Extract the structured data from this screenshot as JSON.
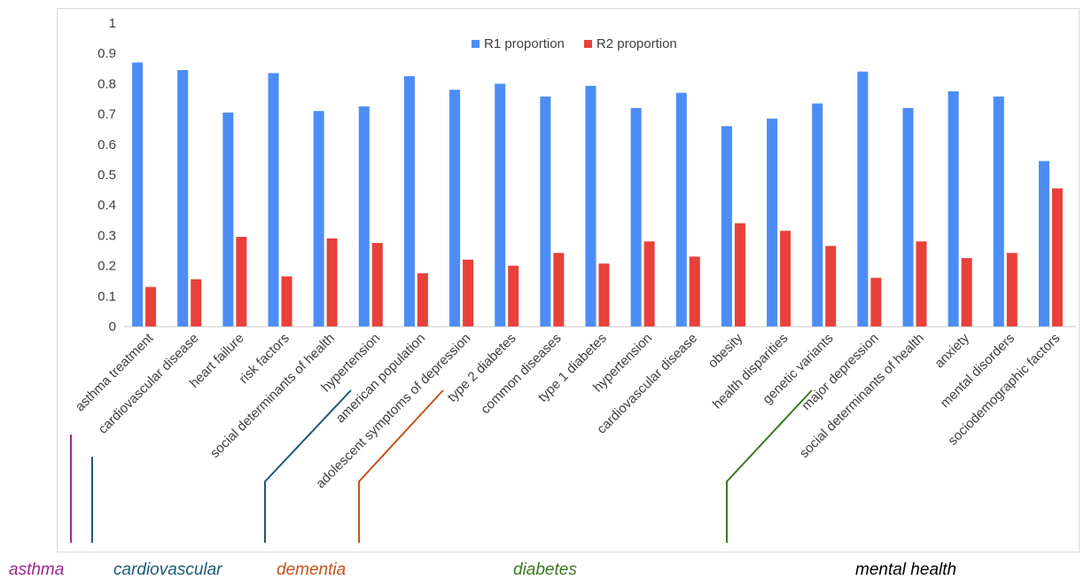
{
  "chart_data": {
    "type": "bar",
    "categories": [
      "asthma treatment",
      "cardiovascular disease",
      "heart failure",
      "risk factors",
      "social determinants of health",
      "hypertension",
      "american population",
      "adolescent symptoms of depression",
      "type 2 diabetes",
      "common diseases",
      "type 1 diabetes",
      "hypertension",
      "cardiovascular disease",
      "obesity",
      "health disparities",
      "genetic variants",
      "major depression",
      "social determinants of health",
      "anxiety",
      "mental disorders",
      "sociodemographic factors"
    ],
    "series": [
      {
        "name": "R1 proportion",
        "color": "#4C8DF5",
        "values": [
          0.87,
          0.845,
          0.705,
          0.835,
          0.71,
          0.725,
          0.825,
          0.78,
          0.8,
          0.758,
          0.793,
          0.72,
          0.77,
          0.66,
          0.685,
          0.735,
          0.84,
          0.72,
          0.775,
          0.758,
          0.545
        ]
      },
      {
        "name": "R2 proportion",
        "color": "#E8403A",
        "values": [
          0.13,
          0.155,
          0.295,
          0.165,
          0.29,
          0.275,
          0.175,
          0.22,
          0.2,
          0.242,
          0.207,
          0.28,
          0.23,
          0.34,
          0.315,
          0.265,
          0.16,
          0.28,
          0.225,
          0.242,
          0.455
        ]
      }
    ],
    "ylim": [
      0,
      1
    ],
    "yticks": [
      "0",
      "0.1",
      "0.2",
      "0.3",
      "0.4",
      "0.5",
      "0.6",
      "0.7",
      "0.8",
      "0.9",
      "1"
    ],
    "grid": false,
    "legend_position": "top-center",
    "groups": [
      {
        "label": "asthma",
        "color": "#A0268F",
        "start": 0,
        "end": 0
      },
      {
        "label": "cardiovascular",
        "color": "#1F5A78",
        "start": 1,
        "end": 5
      },
      {
        "label": "dementia",
        "color": "#C8521A",
        "start": 6,
        "end": 7
      },
      {
        "label": "diabetes",
        "color": "#3A7A22",
        "start": 8,
        "end": 15
      },
      {
        "label": "mental health",
        "color": "#000000",
        "start": 16,
        "end": 20
      }
    ]
  }
}
